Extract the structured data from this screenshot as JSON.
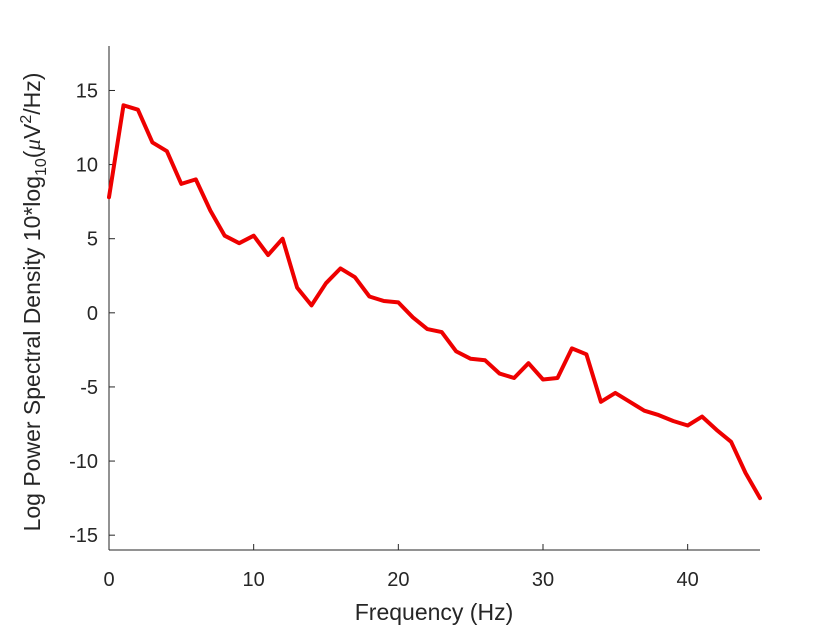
{
  "chart_data": {
    "type": "line",
    "xlabel": "Frequency (Hz)",
    "ylabel": {
      "prefix": "Log Power Spectral Density 10*log",
      "log_sub": "10",
      "paren_open": "(",
      "mu": "μ",
      "unit_main": "V",
      "unit_sup": "2",
      "unit_tail": "/Hz)"
    },
    "xlim": [
      0,
      45
    ],
    "ylim": [
      -16,
      18
    ],
    "xticks": [
      0,
      10,
      20,
      30,
      40
    ],
    "yticks": [
      -15,
      -10,
      -5,
      0,
      5,
      10,
      15
    ],
    "xtick_labels": [
      "0",
      "10",
      "20",
      "30",
      "40"
    ],
    "ytick_labels": [
      "-15",
      "-10",
      "-5",
      "0",
      "5",
      "10",
      "15"
    ],
    "grid": false,
    "line_color": "#ee0000",
    "series": [
      {
        "x": [
          0,
          1,
          2,
          3,
          4,
          5,
          6,
          7,
          8,
          9,
          10,
          11,
          12,
          13,
          14,
          15,
          16,
          17,
          18,
          19,
          20,
          21,
          22,
          23,
          24,
          25,
          26,
          27,
          28,
          29,
          30,
          31,
          32,
          33,
          34,
          35,
          36,
          37,
          38,
          39,
          40,
          41,
          42,
          43,
          44,
          45
        ],
        "values": [
          7.8,
          14.0,
          13.7,
          11.5,
          10.9,
          8.7,
          9.0,
          6.9,
          5.2,
          4.7,
          5.2,
          3.9,
          5.0,
          1.7,
          0.5,
          2.0,
          3.0,
          2.4,
          1.1,
          0.8,
          0.7,
          -0.3,
          -1.1,
          -1.3,
          -2.6,
          -3.1,
          -3.2,
          -4.1,
          -4.4,
          -3.4,
          -4.5,
          -4.4,
          -2.4,
          -2.8,
          -6.0,
          -5.4,
          -6.0,
          -6.6,
          -6.9,
          -7.3,
          -7.6,
          -7.0,
          -7.9,
          -8.7,
          -10.8,
          -12.5
        ]
      }
    ]
  }
}
